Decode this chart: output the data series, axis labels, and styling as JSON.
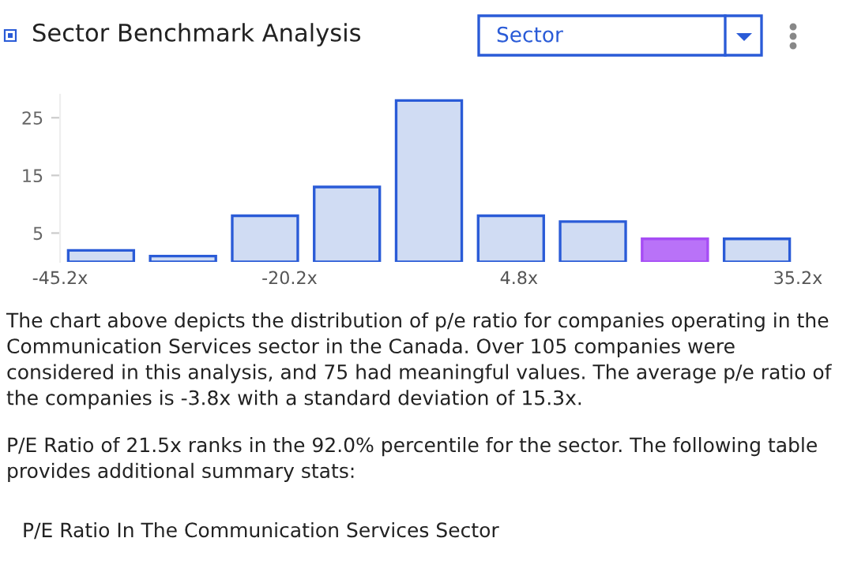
{
  "chart_data": {
    "type": "histogram",
    "title": "Sector Benchmark Analysis",
    "bins": [
      -45.2,
      -36.27,
      -27.33,
      -18.4,
      -9.47,
      -0.53,
      8.4,
      17.33,
      26.27,
      35.2
    ],
    "values": [
      2,
      1,
      8,
      13,
      28,
      8,
      7,
      4,
      4
    ],
    "colors": [
      "#d0dcf3",
      "#d0dcf3",
      "#d0dcf3",
      "#d0dcf3",
      "#d0dcf3",
      "#d0dcf3",
      "#d0dcf3",
      "#b972f8",
      "#d0dcf3"
    ],
    "xlim": [
      -45.2,
      35.2
    ],
    "xticks": [
      {
        "value": -45.2,
        "label": "-45.2x"
      },
      {
        "value": -20.2,
        "label": "-20.2x"
      },
      {
        "value": 4.8,
        "label": "4.8x"
      },
      {
        "value": 35.2,
        "label": "35.2x"
      }
    ],
    "ylim": [
      0,
      29
    ],
    "yticks": [
      5,
      15,
      25
    ],
    "grid": false,
    "annotations": [
      "Sector",
      "The chart above depicts the distribution of p/e ratio for companies operating in the Communication Services sector in the Canada. Over 105 companies were considered in this analysis, and 75 had meaningful values. The average p/e ratio of the companies is -3.8x with a standard deviation of 15.3x.",
      "P/E Ratio of 21.5x ranks in the 92.0% percentile for the sector. The following table provides additional summary stats:",
      "P/E Ratio In The Communication Services Sector"
    ]
  }
}
